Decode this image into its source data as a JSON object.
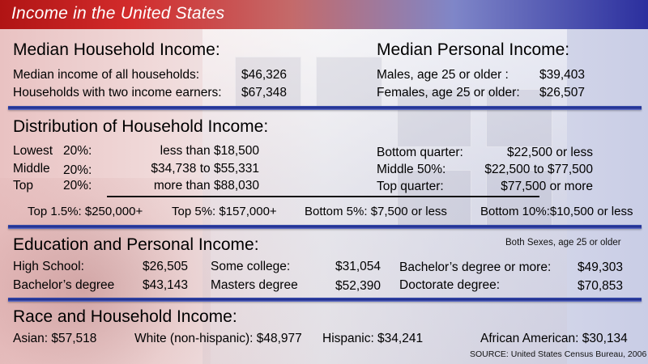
{
  "title": "Income in the United States",
  "median_household": {
    "heading": "Median Household Income:",
    "rows": [
      {
        "label": "Median income of all households:",
        "value": "$46,326"
      },
      {
        "label": "Households with two income earners:",
        "value": "$67,348"
      }
    ]
  },
  "median_personal": {
    "heading": "Median Personal Income:",
    "rows": [
      {
        "label": "Males, age 25 or older :",
        "value": "$39,403"
      },
      {
        "label": "Females, age 25 or older:",
        "value": "$26,507"
      }
    ]
  },
  "distribution": {
    "heading": "Distribution of Household Income:",
    "left_rows": [
      {
        "label": "Lowest",
        "pct": "20%:",
        "value": "less than $18,500"
      },
      {
        "label": "Middle",
        "pct": "20%:",
        "value": "$34,738 to $55,331"
      },
      {
        "label": "Top",
        "pct": "20%:",
        "value": "more than $88,030"
      }
    ],
    "right_rows": [
      {
        "label": "Bottom quarter:",
        "value": "$22,500 or less"
      },
      {
        "label": "Middle 50%:",
        "value": "$22,500 to $77,500"
      },
      {
        "label": "Top quarter:",
        "value": "$77,500 or more"
      }
    ],
    "extra": [
      "Top 1.5%: $250,000+",
      "Top 5%: $157,000+",
      "Bottom 5%: $7,500 or less",
      "Bottom 10%:$10,500 or less"
    ]
  },
  "education": {
    "heading": "Education and Personal Income:",
    "note": "Both Sexes, age 25 or older",
    "items": [
      {
        "label": "High School:",
        "value": "$26,505"
      },
      {
        "label": "Bachelor’s degree",
        "value": "$43,143"
      },
      {
        "label": "Some college:",
        "value": "$31,054"
      },
      {
        "label": "Masters degree",
        "value": "$52,390"
      },
      {
        "label": "Bachelor’s degree or more:",
        "value": "$49,303"
      },
      {
        "label": "Doctorate degree:",
        "value": "$70,853"
      }
    ]
  },
  "race": {
    "heading": "Race and Household Income:",
    "items": [
      "Asian: $57,518",
      "White (non-hispanic): $48,977",
      "Hispanic: $34,241",
      "African American: $30,134"
    ]
  },
  "source": "SOURCE: United States Census Bureau, 2006"
}
